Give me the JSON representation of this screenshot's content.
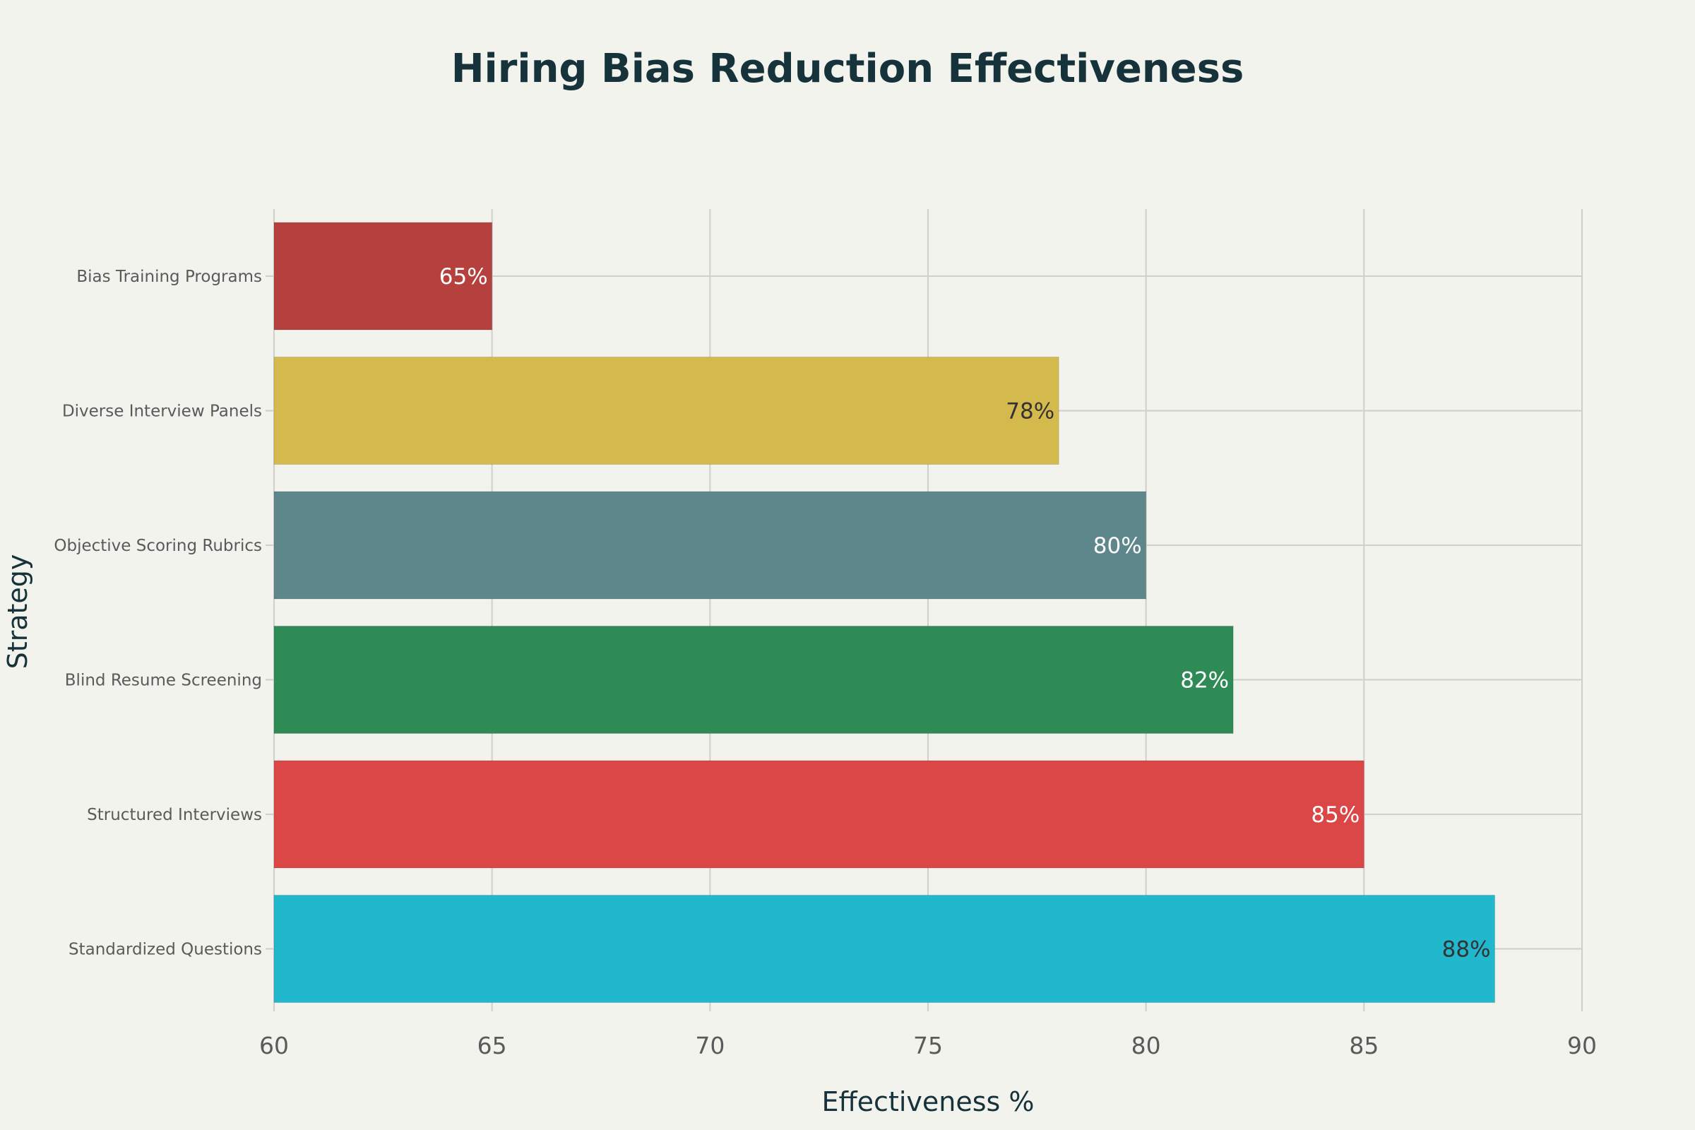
{
  "chart_data": {
    "type": "bar",
    "orientation": "horizontal",
    "title": "Hiring Bias Reduction Effectiveness",
    "xlabel": "Effectiveness %",
    "ylabel": "Strategy",
    "categories": [
      "Bias Training Programs",
      "Diverse Interview Panels",
      "Objective Scoring Rubrics",
      "Blind Resume Screening",
      "Structured Interviews",
      "Standardized Questions"
    ],
    "values": [
      65,
      78,
      80,
      82,
      85,
      88
    ],
    "data_labels": [
      "65%",
      "78%",
      "80%",
      "82%",
      "85%",
      "88%"
    ],
    "bar_colors": [
      "#b5403d",
      "#d4ba4c",
      "#5e878c",
      "#2f8b56",
      "#db4646",
      "#21b7cd"
    ],
    "label_colors": [
      "#ffffff",
      "#333333",
      "#ffffff",
      "#ffffff",
      "#ffffff",
      "#333333"
    ],
    "xlim": [
      60,
      90
    ],
    "xticks": [
      60,
      65,
      70,
      75,
      80,
      85,
      90
    ],
    "grid": true,
    "legend": "none"
  }
}
